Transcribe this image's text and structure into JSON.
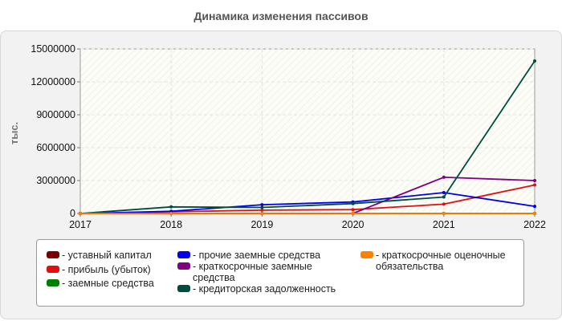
{
  "chart_data": {
    "type": "line",
    "title": "Динамика изменения пассивов",
    "ylabel": "тыс.",
    "xlabel": "",
    "x": [
      "2017",
      "2018",
      "2019",
      "2020",
      "2021",
      "2022"
    ],
    "ylim": [
      0,
      15000000
    ],
    "yticks": [
      "0",
      "3000000",
      "6000000",
      "9000000",
      "12000000",
      "15000000"
    ],
    "grid": true,
    "legend_position": "bottom",
    "series": [
      {
        "name": "- уставный капитал",
        "color": "#7a0000",
        "values": [
          10000,
          10000,
          10000,
          10000,
          10000,
          10000
        ]
      },
      {
        "name": "- прибыль (убыток)",
        "color": "#e01010",
        "values": [
          0,
          150000,
          300000,
          350000,
          850000,
          2600000
        ]
      },
      {
        "name": "- заемные средства",
        "color": "#008000",
        "values": [
          0,
          0,
          0,
          0,
          0,
          0
        ]
      },
      {
        "name": "- прочие заемные средства",
        "color": "#0000ee",
        "values": [
          0,
          200000,
          800000,
          1050000,
          1900000,
          650000
        ]
      },
      {
        "name": "- краткосрочные заемные средства",
        "color": "#800080",
        "values": [
          0,
          0,
          0,
          0,
          3300000,
          3000000
        ]
      },
      {
        "name": "- кредиторская задолженность",
        "color": "#004d40",
        "values": [
          0,
          600000,
          550000,
          900000,
          1500000,
          13900000
        ]
      },
      {
        "name": "- краткосрочные оценочные обязательства",
        "color": "#ff8000",
        "values": [
          0,
          0,
          0,
          0,
          0,
          0
        ]
      }
    ]
  }
}
